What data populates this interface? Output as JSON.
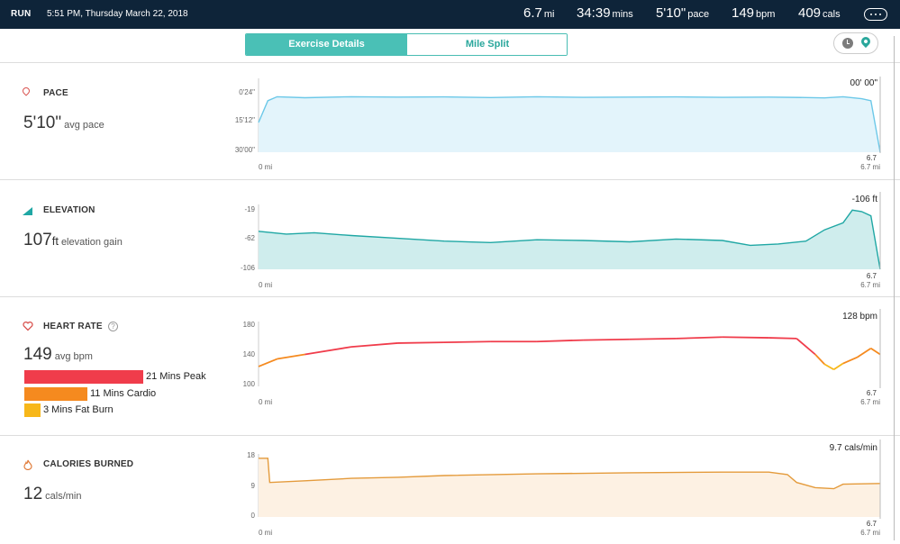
{
  "header": {
    "activity": "RUN",
    "datetime": "5:51 PM, Thursday March 22, 2018",
    "stats": [
      {
        "value": "6.7",
        "unit": "mi"
      },
      {
        "value": "34:39",
        "unit": "mins"
      },
      {
        "value": "5'10\"",
        "unit": "pace"
      },
      {
        "value": "149",
        "unit": "bpm"
      },
      {
        "value": "409",
        "unit": "cals"
      }
    ]
  },
  "tabs": [
    {
      "label": "Exercise Details",
      "active": true
    },
    {
      "label": "Mile Split",
      "active": false
    }
  ],
  "sections": {
    "pace": {
      "title": "PACE",
      "value": "5'10\"",
      "unit": "",
      "subtitle": "avg pace",
      "color": "#6cc8e8",
      "current": "00' 00\"",
      "ticks": [
        "0'24\"",
        "15'12\"",
        "30'00\""
      ],
      "x_start": "0 mi",
      "x_end": "6.7 mi",
      "end_value": "6.7"
    },
    "elevation": {
      "title": "ELEVATION",
      "value": "107",
      "unit": "ft",
      "subtitle": "elevation gain",
      "color": "#1fa7a4",
      "current": "-106 ft",
      "ticks": [
        "-19",
        "-62",
        "-106"
      ],
      "x_start": "0 mi",
      "x_end": "6.7 mi",
      "end_value": "6.7"
    },
    "heart": {
      "title": "HEART RATE",
      "value": "149",
      "unit": "",
      "subtitle": "avg bpm",
      "current": "128 bpm",
      "ticks": [
        "180",
        "140",
        "100"
      ],
      "x_start": "0 mi",
      "x_end": "6.7 mi",
      "end_value": "6.7",
      "zones": [
        {
          "label": "21 Mins Peak",
          "color": "#f03c4b",
          "minutes": 21
        },
        {
          "label": "11 Mins Cardio",
          "color": "#f58a1f",
          "minutes": 11
        },
        {
          "label": "3 Mins Fat Burn",
          "color": "#f7b719",
          "minutes": 3
        }
      ]
    },
    "calories": {
      "title": "CALORIES BURNED",
      "value": "12",
      "unit": "",
      "subtitle": "cals/min",
      "color": "#e49b3c",
      "current": "9.7 cals/min",
      "ticks": [
        "18",
        "9",
        "0"
      ],
      "x_start": "0 mi",
      "x_end": "6.7 mi",
      "end_value": "6.7"
    }
  },
  "chart_data": [
    {
      "type": "area",
      "xlabel": "",
      "ylabel": "",
      "y_reversed": true,
      "x": [
        0,
        0.1,
        0.2,
        0.5,
        1.0,
        1.5,
        2.0,
        2.5,
        3.0,
        3.5,
        4.0,
        4.5,
        5.0,
        5.5,
        5.9,
        6.1,
        6.3,
        6.5,
        6.6,
        6.7
      ],
      "series": [
        {
          "values": [
            15,
            4,
            2,
            2.5,
            2,
            2.2,
            2.1,
            2.4,
            2,
            2.3,
            2.2,
            2.1,
            2.3,
            2.2,
            2.4,
            2.6,
            2,
            3,
            4,
            30
          ]
        }
      ],
      "xlim": [
        0,
        6.7
      ],
      "ylim_seconds": [
        24,
        1800
      ]
    },
    {
      "type": "area",
      "xlabel": "",
      "ylabel": "",
      "x": [
        0,
        0.3,
        0.6,
        1.0,
        1.5,
        2.0,
        2.5,
        3.0,
        3.5,
        4.0,
        4.5,
        5.0,
        5.3,
        5.6,
        5.9,
        6.1,
        6.3,
        6.4,
        6.5,
        6.6,
        6.7
      ],
      "series": [
        {
          "values": [
            -52,
            -56,
            -54,
            -58,
            -62,
            -66,
            -68,
            -64,
            -65,
            -67,
            -63,
            -65,
            -72,
            -70,
            -66,
            -50,
            -40,
            -22,
            -24,
            -30,
            -106
          ]
        }
      ],
      "xlim": [
        0,
        6.7
      ],
      "ylim": [
        -106,
        -19
      ]
    },
    {
      "type": "line",
      "xlabel": "",
      "ylabel": "",
      "x": [
        0,
        0.2,
        0.5,
        1.0,
        1.5,
        2.0,
        2.5,
        3.0,
        3.5,
        4.0,
        4.5,
        5.0,
        5.5,
        5.8,
        6.0,
        6.1,
        6.2,
        6.3,
        6.45,
        6.6,
        6.7
      ],
      "series": [
        {
          "values": [
            124,
            134,
            140,
            150,
            155,
            156,
            157,
            157,
            159,
            160,
            161,
            163,
            162,
            161,
            140,
            127,
            120,
            128,
            136,
            148,
            140
          ]
        }
      ],
      "xlim": [
        0,
        6.7
      ],
      "ylim": [
        100,
        180
      ]
    },
    {
      "type": "area",
      "xlabel": "",
      "ylabel": "",
      "x": [
        0,
        0.1,
        0.12,
        0.5,
        1.0,
        1.5,
        2.0,
        3.0,
        4.0,
        5.0,
        5.5,
        5.7,
        5.8,
        6.0,
        6.2,
        6.3,
        6.7
      ],
      "series": [
        {
          "values": [
            17,
            17,
            10,
            10.5,
            11.2,
            11.5,
            12,
            12.5,
            12.8,
            13,
            13,
            12.3,
            10,
            8.5,
            8.2,
            9.5,
            9.7
          ]
        }
      ],
      "xlim": [
        0,
        6.7
      ],
      "ylim": [
        0,
        18
      ]
    }
  ]
}
